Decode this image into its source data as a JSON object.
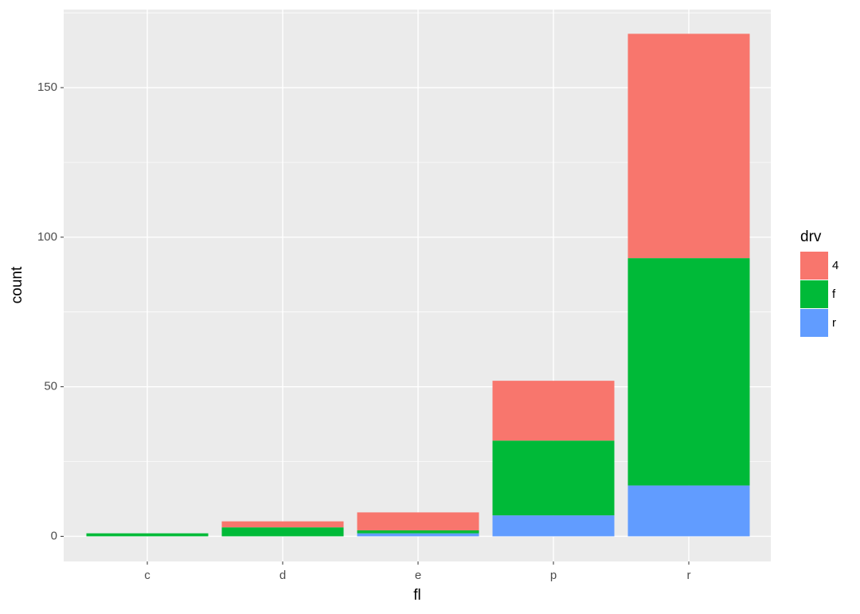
{
  "chart_data": {
    "type": "stacked_bar",
    "x_label": "fl",
    "y_label": "count",
    "categories": [
      "c",
      "d",
      "e",
      "p",
      "r"
    ],
    "series": [
      {
        "name": "4",
        "color": "#F8766D",
        "values": [
          0,
          2,
          6,
          20,
          75
        ]
      },
      {
        "name": "f",
        "color": "#00BA38",
        "values": [
          1,
          3,
          1,
          25,
          76
        ]
      },
      {
        "name": "r",
        "color": "#619CFF",
        "values": [
          0,
          0,
          1,
          7,
          17
        ]
      }
    ],
    "legend_title": "drv",
    "legend_position": "right",
    "ylim": [
      -8.4,
      176.1
    ],
    "yticks": [
      0,
      50,
      100,
      150
    ],
    "minor_yticks": [
      25,
      75,
      125,
      175
    ],
    "grid": true
  }
}
